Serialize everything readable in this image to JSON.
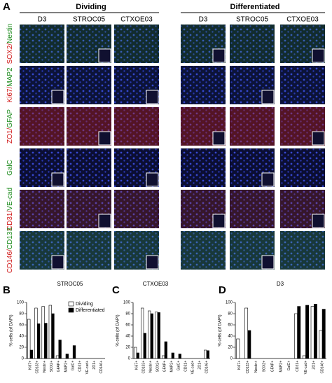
{
  "panel_a": {
    "letter": "A",
    "groups": [
      "Dividing",
      "Differentiated"
    ],
    "columns": [
      "D3",
      "STROC05",
      "CTXOE03",
      "D3",
      "STROC05",
      "CTXOE03"
    ],
    "rows": [
      {
        "red": "SOX2/",
        "green": "Nestin"
      },
      {
        "red": "Ki67/",
        "green": "MAP2"
      },
      {
        "red": "ZO1/",
        "green": "GFAP"
      },
      {
        "green": "GalC"
      },
      {
        "red": "CD31/",
        "green": "VE-cad"
      },
      {
        "red": "CD146/",
        "green": "CD133"
      }
    ]
  },
  "chart_data": [
    {
      "type": "bar",
      "label": "B",
      "title": "STROC05",
      "y_label": "% cells (of DAPI)",
      "categories": [
        "Ki67+",
        "CD133+",
        "Nestin+",
        "SOX2+",
        "GFAP+",
        "MAP2+",
        "GalC+",
        "CD31+",
        "VE-cad+",
        "ZO1+",
        "CD146+"
      ],
      "series": [
        {
          "name": "Dividing",
          "color": "#ffffff",
          "values": [
            70,
            90,
            93,
            95,
            5,
            0,
            0,
            0,
            0,
            0,
            0
          ]
        },
        {
          "name": "Differentiated",
          "color": "#000000",
          "values": [
            15,
            62,
            63,
            80,
            33,
            8,
            23,
            0,
            0,
            0,
            0
          ]
        }
      ],
      "ylim": [
        0,
        100
      ],
      "yticks": [
        0,
        20,
        40,
        60,
        80,
        100
      ],
      "legend": "top-right"
    },
    {
      "type": "bar",
      "label": "C",
      "title": "CTXOE03",
      "y_label": "% cells (of DAPI)",
      "categories": [
        "Ki67+",
        "CD133+",
        "Nestin+",
        "SOX2+",
        "GFAP+",
        "MAP2+",
        "GalC+",
        "CD31+",
        "VE-cad+",
        "ZO1+",
        "CD146+"
      ],
      "series": [
        {
          "color": "#ffffff",
          "values": [
            20,
            90,
            85,
            83,
            5,
            0,
            0,
            0,
            0,
            0,
            15
          ]
        },
        {
          "color": "#000000",
          "values": [
            10,
            45,
            80,
            82,
            30,
            10,
            8,
            0,
            0,
            0,
            14
          ]
        }
      ],
      "ylim": [
        0,
        100
      ],
      "yticks": [
        0,
        20,
        40,
        60,
        80,
        100
      ]
    },
    {
      "type": "bar",
      "label": "D",
      "title": "D3",
      "y_label": "% cells (of DAPI)",
      "categories": [
        "Ki67+",
        "CD133+",
        "Nestin+",
        "SOX2+",
        "GFAP+",
        "MAP2+",
        "GalC+",
        "CD31+",
        "VE-cad+",
        "ZO1+",
        "CD146+"
      ],
      "series": [
        {
          "color": "#ffffff",
          "values": [
            35,
            90,
            0,
            0,
            0,
            0,
            0,
            80,
            5,
            93,
            50
          ]
        },
        {
          "color": "#000000",
          "values": [
            0,
            50,
            0,
            0,
            0,
            0,
            0,
            93,
            95,
            97,
            88
          ]
        }
      ],
      "ylim": [
        0,
        100
      ],
      "yticks": [
        0,
        20,
        40,
        60,
        80,
        100
      ]
    }
  ]
}
